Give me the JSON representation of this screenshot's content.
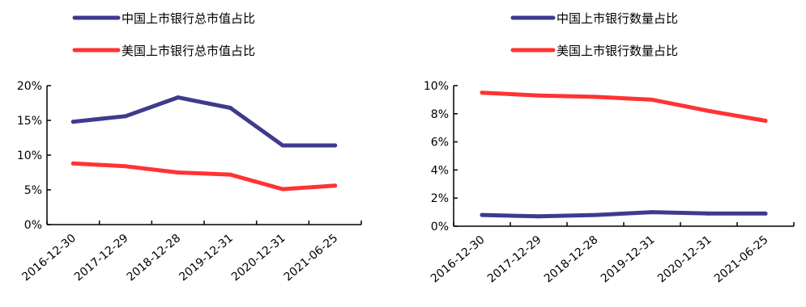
{
  "chart_data": [
    {
      "type": "line",
      "categories": [
        "2016-12-30",
        "2017-12-29",
        "2018-12-28",
        "2019-12-31",
        "2020-12-31",
        "2021-06-25"
      ],
      "series": [
        {
          "name": "中国上市银行总市值占比",
          "values": [
            14.8,
            15.6,
            18.3,
            16.8,
            11.4,
            11.4
          ],
          "color": "#3f3a8f"
        },
        {
          "name": "美国上市银行总市值占比",
          "values": [
            8.8,
            8.4,
            7.5,
            7.2,
            5.1,
            5.6
          ],
          "color": "#ff3333"
        }
      ],
      "yticks": [
        "0%",
        "5%",
        "10%",
        "15%",
        "20%"
      ],
      "ylim": [
        0,
        20
      ],
      "legend_position": "top-center"
    },
    {
      "type": "line",
      "categories": [
        "2016-12-30",
        "2017-12-29",
        "2018-12-28",
        "2019-12-31",
        "2020-12-31",
        "2021-06-25"
      ],
      "series": [
        {
          "name": "中国上市银行数量占比",
          "values": [
            0.8,
            0.7,
            0.8,
            1.0,
            0.9,
            0.9
          ],
          "color": "#3f3a8f"
        },
        {
          "name": "美国上市银行数量占比",
          "values": [
            9.5,
            9.3,
            9.2,
            9.0,
            8.2,
            7.5
          ],
          "color": "#ff3333"
        }
      ],
      "yticks": [
        "0%",
        "2%",
        "4%",
        "6%",
        "8%",
        "10%"
      ],
      "ylim": [
        0,
        10
      ],
      "legend_position": "top-center"
    }
  ]
}
